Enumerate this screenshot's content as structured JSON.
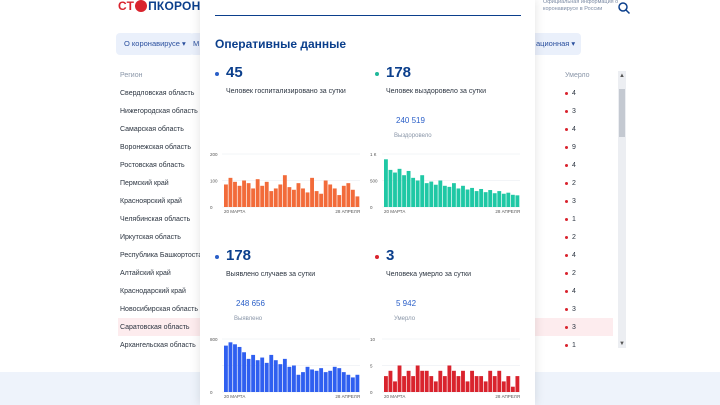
{
  "header": {
    "logo_part1": "СТ",
    "logo_part2": "ПКОРОНАВ",
    "note": "Официальная информация о коронавирусе в России"
  },
  "nav": {
    "items": [
      "О коронавирусе",
      "М",
      "ационная"
    ]
  },
  "table": {
    "col_region": "Регион",
    "col_deaths": "Умерло",
    "rows": [
      {
        "region": "Свердловская область",
        "deaths": "4"
      },
      {
        "region": "Нижегородская область",
        "deaths": "3"
      },
      {
        "region": "Самарская область",
        "deaths": "4"
      },
      {
        "region": "Воронежская область",
        "deaths": "9"
      },
      {
        "region": "Ростовская область",
        "deaths": "4"
      },
      {
        "region": "Пермский край",
        "deaths": "2"
      },
      {
        "region": "Красноярский край",
        "deaths": "3"
      },
      {
        "region": "Челябинская область",
        "deaths": "1"
      },
      {
        "region": "Иркутская область",
        "deaths": "2"
      },
      {
        "region": "Республика Башкортоста",
        "deaths": "4"
      },
      {
        "region": "Алтайский край",
        "deaths": "2"
      },
      {
        "region": "Краснодарский край",
        "deaths": "4"
      },
      {
        "region": "Новосибирская область",
        "deaths": "3"
      },
      {
        "region": "Саратовская область",
        "deaths": "3"
      },
      {
        "region": "Архангельская область",
        "deaths": "1"
      }
    ]
  },
  "modal": {
    "title": "Оперативные данные",
    "stats": [
      {
        "value": "45",
        "label": "Человек госпитализировано за сутки",
        "color": "#2a5fc8"
      },
      {
        "value": "178",
        "label": "Человек выздоровело за сутки",
        "total": "240 519",
        "total_label": "Выздоровело",
        "color": "#1fb89a"
      },
      {
        "value": "178",
        "label": "Выявлено случаев за сутки",
        "total": "248 656",
        "total_label": "Выявлено",
        "color": "#2a5fc8"
      },
      {
        "value": "3",
        "label": "Человека умерло за сутки",
        "total": "5 942",
        "total_label": "Умерло",
        "color": "#d9232d"
      }
    ]
  },
  "chart_data": [
    {
      "type": "bar",
      "color": "#f26b3a",
      "yticks": [
        "200",
        "100",
        "0"
      ],
      "ylim": [
        0,
        200
      ],
      "x_start": "20 МАРТА",
      "x_end": "28 АПРЕЛЯ",
      "values": [
        85,
        110,
        95,
        80,
        100,
        90,
        70,
        105,
        80,
        95,
        60,
        70,
        85,
        120,
        75,
        65,
        90,
        70,
        55,
        110,
        60,
        50,
        100,
        85,
        70,
        45,
        80,
        90,
        65,
        40
      ]
    },
    {
      "type": "bar",
      "color": "#1fc8a5",
      "yticks": [
        "1 К",
        "500",
        "0"
      ],
      "ylim": [
        0,
        1000
      ],
      "x_start": "20 МАРТА",
      "x_end": "28 АПРЕЛЯ",
      "values": [
        900,
        700,
        650,
        720,
        600,
        680,
        550,
        500,
        600,
        450,
        480,
        420,
        500,
        400,
        380,
        450,
        350,
        400,
        330,
        360,
        300,
        340,
        280,
        320,
        260,
        300,
        250,
        270,
        230,
        220
      ]
    },
    {
      "type": "bar",
      "color": "#2f5ff0",
      "yticks": [
        "800",
        "",
        "0"
      ],
      "ylim": [
        0,
        800
      ],
      "x_start": "20 МАРТА",
      "x_end": "28 АПРЕЛЯ",
      "values": [
        700,
        750,
        720,
        680,
        600,
        500,
        560,
        480,
        520,
        440,
        560,
        480,
        420,
        500,
        380,
        400,
        260,
        300,
        380,
        340,
        320,
        360,
        300,
        320,
        380,
        360,
        300,
        260,
        220,
        260
      ]
    },
    {
      "type": "bar",
      "color": "#d9232d",
      "yticks": [
        "10",
        "5",
        "0"
      ],
      "ylim": [
        0,
        10
      ],
      "x_start": "20 МАРТА",
      "x_end": "28 АПРЕЛЯ",
      "values": [
        3,
        4,
        2,
        5,
        3,
        4,
        3,
        5,
        4,
        4,
        3,
        2,
        4,
        3,
        5,
        4,
        3,
        4,
        2,
        4,
        3,
        3,
        2,
        4,
        3,
        4,
        2,
        3,
        1,
        3
      ]
    }
  ]
}
